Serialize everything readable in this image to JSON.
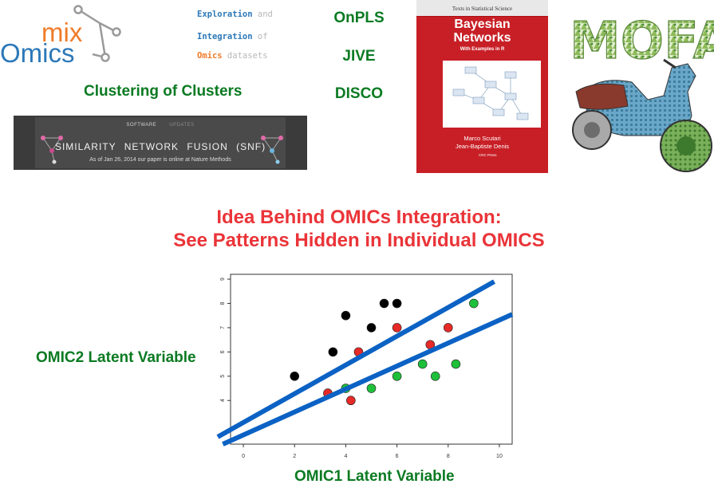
{
  "logos": {
    "mixomics": {
      "word_mix": "mix",
      "word_omics": "Omics",
      "colors": {
        "orange": "#ef7b28",
        "blue": "#2c78b8"
      }
    },
    "mofa": {
      "text": "MOFA"
    }
  },
  "mixomics_tagline": {
    "line1": {
      "strong": "Exploration",
      "light": " and"
    },
    "line2": {
      "strong": "Integration",
      "light": " of"
    },
    "line3": {
      "strong": "Omics",
      "light": " datasets"
    }
  },
  "methods": [
    "OnPLS",
    "JIVE",
    "DISCO"
  ],
  "clustering_title": "Clustering of Clusters",
  "snf_banner": {
    "nav": [
      "SOFTWARE",
      "UPDATES"
    ],
    "title": "SIMILARITY NETWORK FUSION (SNF)",
    "subtitle": "As of Jan 26, 2014 our paper is online at Nature Methods"
  },
  "book": {
    "series": "Texts in Statistical Science",
    "title_line1": "Bayesian",
    "title_line2": "Networks",
    "subtitle": "With Examples in R",
    "author1": "Marco Scutari",
    "author2": "Jean-Baptiste Denis",
    "publisher": "CRC Press",
    "color": "#c81f26"
  },
  "idea": {
    "line1": "Idea Behind OMICs Integration:",
    "line2": "See Patterns Hidden in Individual OMICS"
  },
  "axis_titles": {
    "x": "OMIC1 Latent Variable",
    "y": "OMIC2 Latent Variable"
  },
  "chart_data": {
    "type": "scatter",
    "xlabel": "OMIC1 Latent Variable",
    "ylabel": "OMIC2 Latent Variable",
    "xlim": [
      -0.5,
      10.5
    ],
    "ylim": [
      2.2,
      9.2
    ],
    "x_ticks": [
      0,
      2,
      4,
      6,
      8,
      10
    ],
    "y_ticks": [
      4,
      5,
      6,
      7,
      8,
      9
    ],
    "grid": false,
    "series": [
      {
        "color": "#000000",
        "x": [
          2,
          3.5,
          4,
          5,
          5.5,
          6
        ],
        "y": [
          5,
          6,
          7.5,
          7,
          8,
          8
        ]
      },
      {
        "color": "#e62a27",
        "x": [
          3.3,
          4.2,
          4.5,
          6,
          7.3,
          8
        ],
        "y": [
          4.3,
          4,
          6,
          7,
          6.3,
          7
        ]
      },
      {
        "color": "#1ec03a",
        "x": [
          4,
          5,
          6,
          7,
          7.5,
          8.3,
          9
        ],
        "y": [
          4.5,
          4.5,
          5,
          5.5,
          5,
          5.5,
          8
        ]
      }
    ],
    "trend_lines": [
      {
        "color": "#0b62c4",
        "from": [
          -1,
          2.5
        ],
        "to": [
          9.8,
          8.9
        ]
      },
      {
        "color": "#0b62c4",
        "from": [
          -0.8,
          2.2
        ],
        "to": [
          10.5,
          7.55
        ]
      }
    ]
  }
}
